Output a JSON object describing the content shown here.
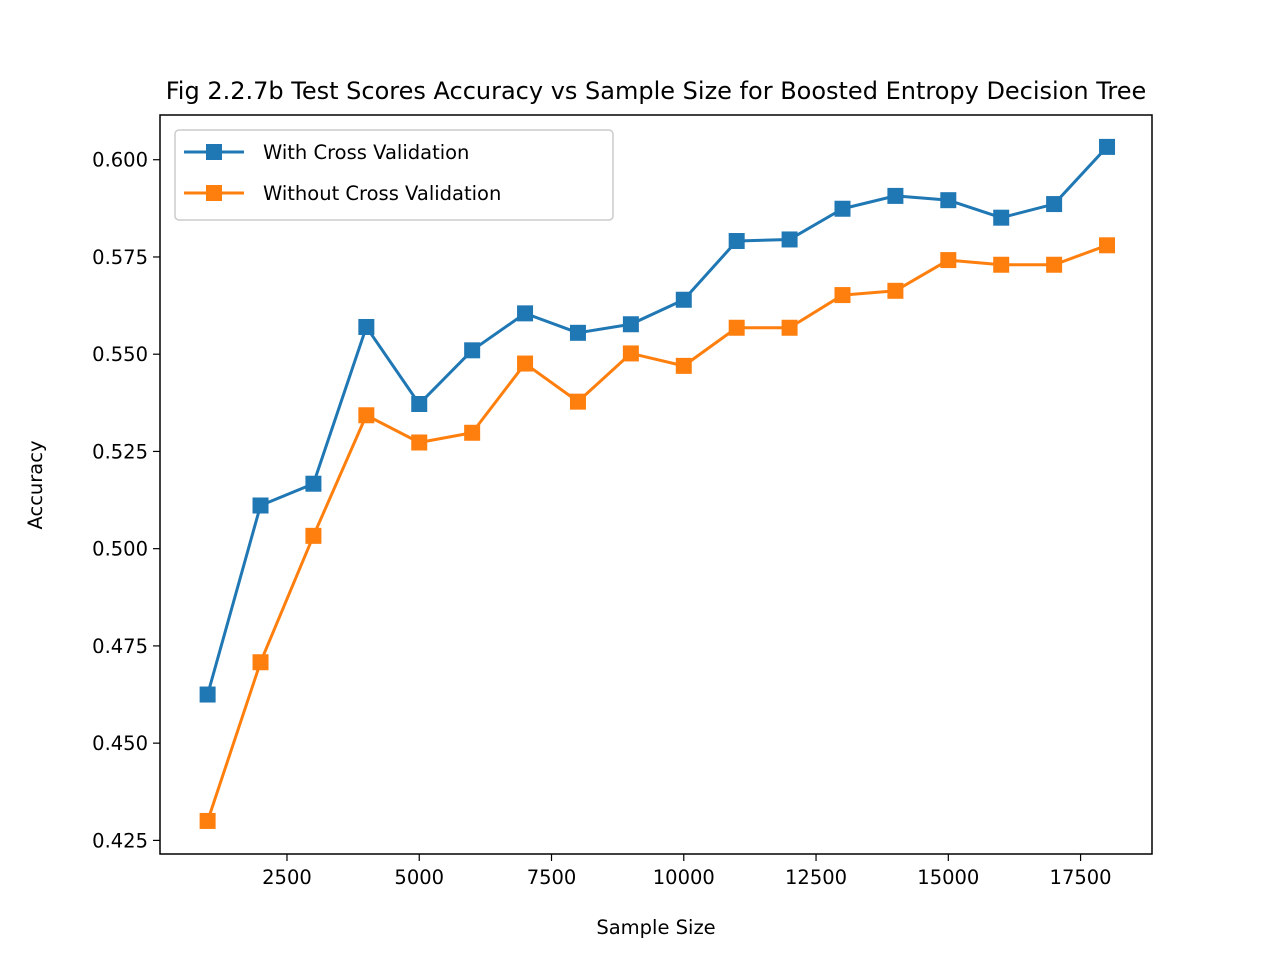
{
  "chart_data": {
    "type": "line",
    "title": "Fig 2.2.7b Test Scores Accuracy vs Sample Size for Boosted Entropy Decision Tree",
    "xlabel": "Sample Size",
    "ylabel": "Accuracy",
    "xlim": [
      100,
      18850
    ],
    "ylim": [
      0.4215,
      0.6115
    ],
    "xticks": [
      2500,
      5000,
      7500,
      10000,
      12500,
      15000,
      17500
    ],
    "xtick_labels": [
      "2500",
      "5000",
      "7500",
      "10000",
      "12500",
      "15000",
      "17500"
    ],
    "yticks": [
      0.425,
      0.45,
      0.475,
      0.5,
      0.525,
      0.55,
      0.575,
      0.6
    ],
    "ytick_labels": [
      "0.425",
      "0.450",
      "0.475",
      "0.500",
      "0.525",
      "0.550",
      "0.575",
      "0.600"
    ],
    "grid": false,
    "legend_position": "upper-left",
    "x": [
      1000,
      2000,
      3000,
      4000,
      5000,
      6000,
      7000,
      8000,
      9000,
      10000,
      11000,
      12000,
      13000,
      14000,
      15000,
      16000,
      17000,
      18000
    ],
    "series": [
      {
        "name": "With Cross Validation",
        "color": "#1f77b4",
        "marker": "square",
        "values": [
          0.4625,
          0.5111,
          0.5167,
          0.557,
          0.5372,
          0.551,
          0.5605,
          0.5555,
          0.5577,
          0.564,
          0.5791,
          0.5795,
          0.5874,
          0.5907,
          0.5896,
          0.5851,
          0.5886,
          0.6033
        ]
      },
      {
        "name": "Without Cross Validation",
        "color": "#ff7f0e",
        "marker": "square",
        "values": [
          0.43,
          0.4708,
          0.5033,
          0.5343,
          0.5273,
          0.5298,
          0.5476,
          0.5378,
          0.5502,
          0.547,
          0.5568,
          0.5568,
          0.5652,
          0.5663,
          0.5742,
          0.573,
          0.573,
          0.578
        ]
      }
    ]
  }
}
